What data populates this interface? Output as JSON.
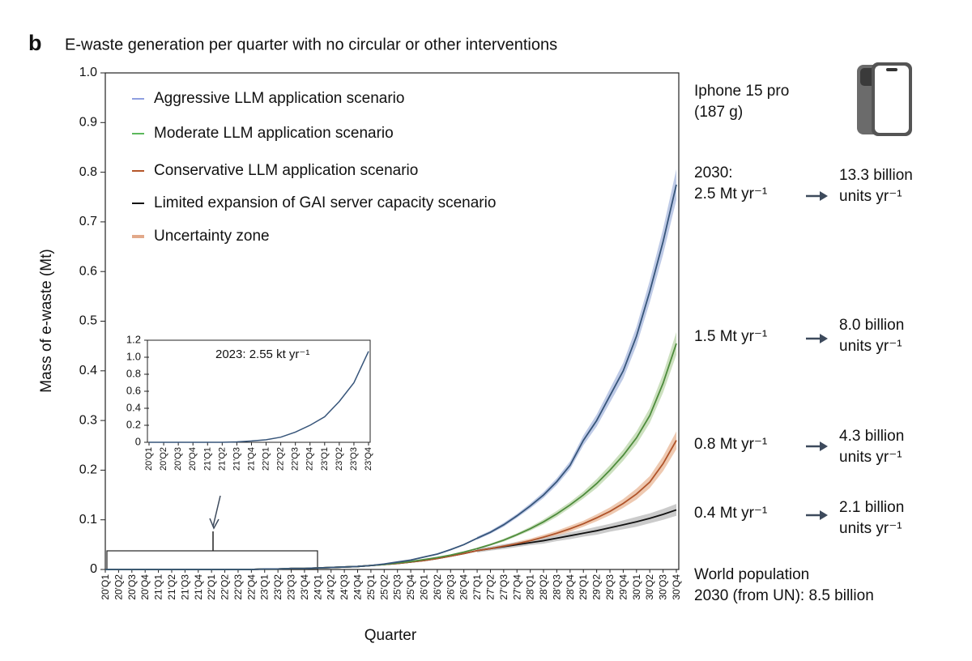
{
  "chart_data": {
    "type": "line",
    "panel_label": "b",
    "title": "E-waste generation per quarter with no circular or other interventions",
    "x_label": "Quarter",
    "y_label": "Mass of e-waste (Mt)",
    "categories": [
      "20'Q1",
      "20'Q2",
      "20'Q3",
      "20'Q4",
      "21'Q1",
      "21'Q2",
      "21'Q3",
      "21'Q4",
      "22'Q1",
      "22'Q2",
      "22'Q3",
      "22'Q4",
      "23'Q1",
      "23'Q2",
      "23'Q3",
      "23'Q4",
      "24'Q1",
      "24'Q2",
      "24'Q3",
      "24'Q4",
      "25'Q1",
      "25'Q2",
      "25'Q3",
      "25'Q4",
      "26'Q1",
      "26'Q2",
      "26'Q3",
      "26'Q4",
      "27'Q1",
      "27'Q2",
      "27'Q3",
      "27'Q4",
      "28'Q1",
      "28'Q2",
      "28'Q3",
      "28'Q4",
      "29'Q1",
      "29'Q2",
      "29'Q3",
      "29'Q4",
      "30'Q1",
      "30'Q2",
      "30'Q3",
      "30'Q4"
    ],
    "ylim": [
      0,
      1
    ],
    "yticks": [
      0,
      0.1,
      0.2,
      0.3,
      0.4,
      0.5,
      0.6,
      0.7,
      0.8,
      0.9,
      {
        "value": 1,
        "label": "1.0"
      }
    ],
    "series": [
      {
        "name": "Aggressive LLM application scenario",
        "legend_color": "#8f9fe0",
        "color": "#37557a",
        "band_color": "#b3c1e2",
        "values": [
          0,
          0,
          0,
          0,
          0,
          0,
          0,
          0,
          0,
          0,
          0,
          0,
          0.001,
          0.001,
          0.002,
          0.002,
          0.003,
          0.004,
          0.005,
          0.006,
          0.008,
          0.011,
          0.015,
          0.019,
          0.025,
          0.031,
          0.04,
          0.05,
          0.063,
          0.075,
          0.09,
          0.108,
          0.128,
          0.15,
          0.177,
          0.21,
          0.26,
          0.3,
          0.35,
          0.4,
          0.47,
          0.56,
          0.66,
          0.775
        ],
        "lower": [
          null,
          null,
          null,
          null,
          null,
          null,
          null,
          null,
          null,
          null,
          null,
          null,
          null,
          null,
          null,
          null,
          null,
          null,
          null,
          null,
          null,
          null,
          null,
          null,
          null,
          null,
          null,
          null,
          0.06,
          0.072,
          0.086,
          0.104,
          0.123,
          0.144,
          0.17,
          0.202,
          0.25,
          0.288,
          0.336,
          0.384,
          0.451,
          0.538,
          0.634,
          0.744
        ],
        "upper": [
          null,
          null,
          null,
          null,
          null,
          null,
          null,
          null,
          null,
          null,
          null,
          null,
          null,
          null,
          null,
          null,
          null,
          null,
          null,
          null,
          null,
          null,
          null,
          null,
          null,
          null,
          null,
          null,
          0.066,
          0.078,
          0.094,
          0.112,
          0.133,
          0.156,
          0.184,
          0.218,
          0.27,
          0.312,
          0.364,
          0.416,
          0.489,
          0.582,
          0.686,
          0.806
        ]
      },
      {
        "name": "Moderate LLM application scenario",
        "legend_color": "#5cb85c",
        "color": "#4e8c3c",
        "band_color": "#c3dbb4",
        "values": [
          0,
          0,
          0,
          0,
          0,
          0,
          0,
          0,
          0,
          0,
          0,
          0,
          0.001,
          0.001,
          0.002,
          0.002,
          0.003,
          0.004,
          0.005,
          0.006,
          0.008,
          0.01,
          0.013,
          0.016,
          0.02,
          0.024,
          0.029,
          0.035,
          0.042,
          0.05,
          0.059,
          0.07,
          0.082,
          0.096,
          0.112,
          0.13,
          0.15,
          0.173,
          0.2,
          0.23,
          0.265,
          0.31,
          0.375,
          0.455
        ],
        "lower": [
          null,
          null,
          null,
          null,
          null,
          null,
          null,
          null,
          null,
          null,
          null,
          null,
          null,
          null,
          null,
          null,
          null,
          null,
          null,
          null,
          null,
          null,
          null,
          null,
          null,
          null,
          null,
          null,
          0.04,
          0.048,
          0.056,
          0.067,
          0.078,
          0.091,
          0.106,
          0.124,
          0.143,
          0.164,
          0.19,
          0.219,
          0.252,
          0.295,
          0.356,
          0.432
        ],
        "upper": [
          null,
          null,
          null,
          null,
          null,
          null,
          null,
          null,
          null,
          null,
          null,
          null,
          null,
          null,
          null,
          null,
          null,
          null,
          null,
          null,
          null,
          null,
          null,
          null,
          null,
          null,
          null,
          null,
          0.044,
          0.052,
          0.062,
          0.073,
          0.086,
          0.101,
          0.118,
          0.136,
          0.157,
          0.182,
          0.21,
          0.241,
          0.278,
          0.325,
          0.394,
          0.478
        ]
      },
      {
        "name": "Conservative LLM application scenario",
        "legend_color": "#b5562a",
        "color": "#b0542a",
        "band_color": "#ebc0a3",
        "values": [
          0,
          0,
          0,
          0,
          0,
          0,
          0,
          0,
          0,
          0,
          0,
          0,
          0.001,
          0.001,
          0.002,
          0.002,
          0.003,
          0.004,
          0.005,
          0.006,
          0.008,
          0.01,
          0.012,
          0.015,
          0.018,
          0.022,
          0.027,
          0.032,
          0.038,
          0.042,
          0.047,
          0.052,
          0.058,
          0.065,
          0.073,
          0.082,
          0.092,
          0.104,
          0.117,
          0.133,
          0.152,
          0.176,
          0.213,
          0.26
        ],
        "lower": [
          null,
          null,
          null,
          null,
          null,
          null,
          null,
          null,
          null,
          null,
          null,
          null,
          null,
          null,
          null,
          null,
          null,
          null,
          null,
          null,
          null,
          null,
          null,
          null,
          null,
          null,
          null,
          null,
          0.035,
          0.039,
          0.044,
          0.048,
          0.054,
          0.06,
          0.068,
          0.076,
          0.086,
          0.097,
          0.109,
          0.124,
          0.141,
          0.164,
          0.198,
          0.242
        ],
        "upper": [
          null,
          null,
          null,
          null,
          null,
          null,
          null,
          null,
          null,
          null,
          null,
          null,
          null,
          null,
          null,
          null,
          null,
          null,
          null,
          null,
          null,
          null,
          null,
          null,
          null,
          null,
          null,
          null,
          0.041,
          0.045,
          0.05,
          0.056,
          0.062,
          0.07,
          0.078,
          0.088,
          0.098,
          0.111,
          0.125,
          0.142,
          0.163,
          0.188,
          0.228,
          0.278
        ]
      },
      {
        "name": "Limited expansion of GAI server capacity scenario",
        "legend_color": "#111111",
        "color": "#111111",
        "band_color": "#c2c2c2",
        "values": [
          0,
          0,
          0,
          0,
          0,
          0,
          0,
          0,
          0,
          0,
          0,
          0,
          0.001,
          0.001,
          0.002,
          0.002,
          0.003,
          0.004,
          0.005,
          0.006,
          0.008,
          0.01,
          0.012,
          0.015,
          0.018,
          0.022,
          0.027,
          0.032,
          0.038,
          0.042,
          0.046,
          0.05,
          0.054,
          0.058,
          0.063,
          0.068,
          0.073,
          0.078,
          0.084,
          0.09,
          0.096,
          0.103,
          0.111,
          0.12
        ],
        "lower": [
          null,
          null,
          null,
          null,
          null,
          null,
          null,
          null,
          null,
          null,
          null,
          null,
          null,
          null,
          null,
          null,
          null,
          null,
          null,
          null,
          null,
          null,
          null,
          null,
          null,
          null,
          null,
          null,
          0.034,
          0.038,
          0.041,
          0.045,
          0.049,
          0.052,
          0.057,
          0.061,
          0.066,
          0.07,
          0.076,
          0.081,
          0.086,
          0.093,
          0.1,
          0.108
        ],
        "upper": [
          null,
          null,
          null,
          null,
          null,
          null,
          null,
          null,
          null,
          null,
          null,
          null,
          null,
          null,
          null,
          null,
          null,
          null,
          null,
          null,
          null,
          null,
          null,
          null,
          null,
          null,
          null,
          null,
          0.042,
          0.046,
          0.051,
          0.055,
          0.059,
          0.064,
          0.069,
          0.075,
          0.08,
          0.086,
          0.092,
          0.099,
          0.106,
          0.113,
          0.122,
          0.132
        ]
      }
    ],
    "uncertainty_label": "Uncertainty zone",
    "uncertainty_color": "#e2a98a",
    "inset": {
      "type": "line",
      "categories": [
        "20'Q1",
        "20'Q2",
        "20'Q3",
        "20'Q4",
        "21'Q1",
        "21'Q2",
        "21'Q3",
        "21'Q4",
        "22'Q1",
        "22'Q2",
        "22'Q3",
        "22'Q4",
        "23'Q1",
        "23'Q2",
        "23'Q3",
        "23'Q4"
      ],
      "values": [
        0,
        0,
        0,
        0,
        0,
        0,
        0.005,
        0.015,
        0.03,
        0.06,
        0.12,
        0.2,
        0.3,
        0.48,
        0.7,
        1.07
      ],
      "color": "#37557a",
      "ylim": [
        0,
        1.2
      ],
      "yticks": [
        0,
        0.2,
        0.4,
        0.6,
        0.8,
        {
          "value": 1,
          "label": "1.0"
        },
        1.2
      ],
      "annotation": "2023: 2.55 kt  yr⁻¹"
    },
    "annotations": {
      "phone": [
        "Iphone 15 pro",
        "(187 g)"
      ],
      "scenarios": [
        {
          "mass": [
            "2030:",
            "2.5 Mt yr⁻¹"
          ],
          "units": [
            "13.3 billion",
            "units yr⁻¹"
          ]
        },
        {
          "mass": [
            "1.5 Mt yr⁻¹"
          ],
          "units": [
            "8.0 billion",
            "units yr⁻¹"
          ]
        },
        {
          "mass": [
            "0.8 Mt yr⁻¹"
          ],
          "units": [
            "4.3 billion",
            "units yr⁻¹"
          ]
        },
        {
          "mass": [
            "0.4 Mt yr⁻¹"
          ],
          "units": [
            "2.1 billion",
            "units yr⁻¹"
          ]
        }
      ],
      "population": [
        "World population",
        "2030 (from UN): 8.5 billion"
      ]
    }
  }
}
